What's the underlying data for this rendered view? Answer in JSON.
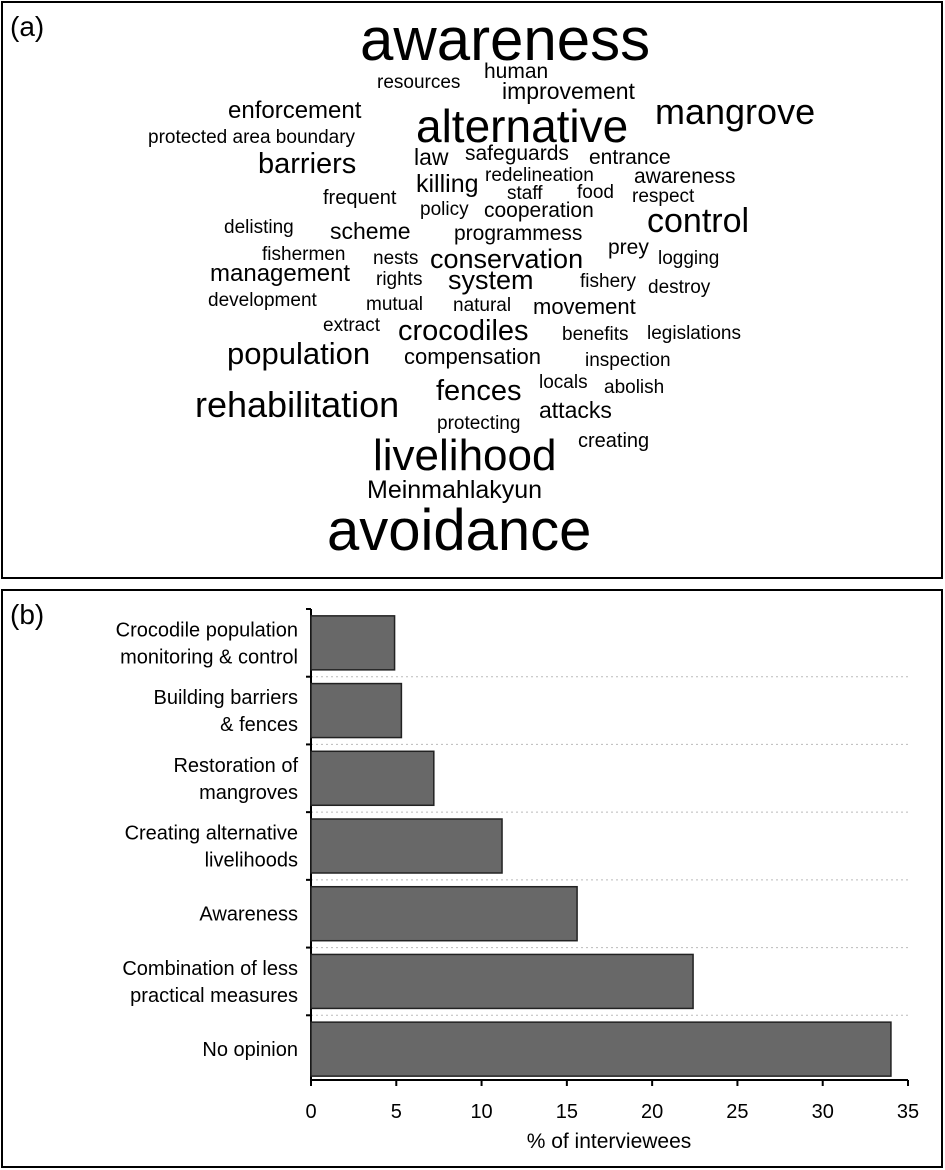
{
  "word_cloud": {
    "label": "(a)",
    "words": [
      "awareness",
      "resources",
      "human",
      "improvement",
      "enforcement",
      "mangrove",
      "alternative",
      "protected area boundary",
      "barriers",
      "law",
      "safeguards",
      "entrance",
      "redelineation",
      "awareness",
      "killing",
      "staff",
      "food",
      "respect",
      "frequent",
      "policy",
      "cooperation",
      "control",
      "delisting",
      "scheme",
      "programmess",
      "prey",
      "fishermen",
      "nests",
      "conservation",
      "logging",
      "management",
      "rights",
      "system",
      "fishery",
      "destroy",
      "development",
      "mutual",
      "natural",
      "movement",
      "extract",
      "crocodiles",
      "benefits",
      "legislations",
      "population",
      "compensation",
      "inspection",
      "locals",
      "abolish",
      "fences",
      "rehabilitation",
      "attacks",
      "protecting",
      "creating",
      "livelihood",
      "Meinmahlakyun",
      "avoidance"
    ]
  },
  "chart_data": {
    "type": "bar",
    "orientation": "horizontal",
    "panel_label": "(b)",
    "categories": [
      [
        "Crocodile population",
        "monitoring & control"
      ],
      [
        "Building barriers",
        "& fences"
      ],
      [
        "Restoration of",
        "mangroves"
      ],
      [
        "Creating alternative",
        "livelihoods"
      ],
      [
        "Awareness"
      ],
      [
        "Combination of less",
        "practical measures"
      ],
      [
        "No opinion"
      ]
    ],
    "values": [
      4.9,
      5.3,
      7.2,
      11.2,
      15.6,
      22.4,
      34.0
    ],
    "color": "#686868",
    "xlim": [
      0,
      35
    ],
    "xticks": [
      0,
      5,
      10,
      15,
      20,
      25,
      30,
      35
    ],
    "xlabel": "% of interviewees"
  }
}
